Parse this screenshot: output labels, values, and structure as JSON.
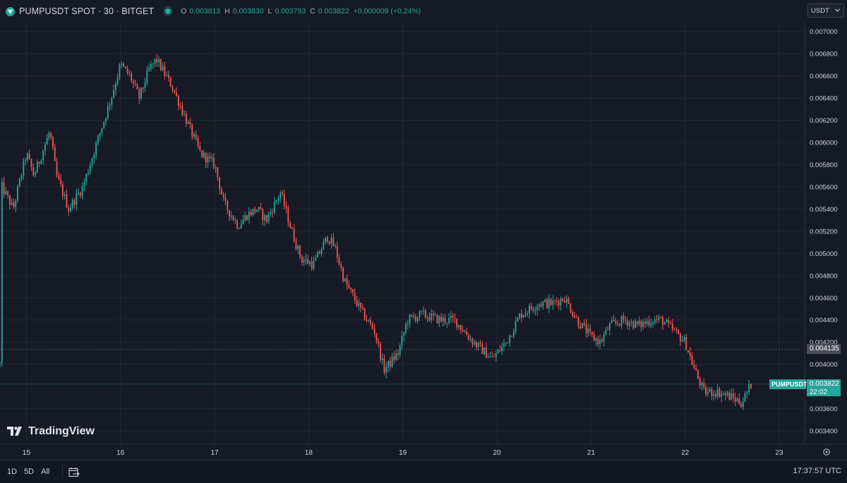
{
  "header": {
    "symbol": "PUMPUSDT SPOT · 30 · BITGET",
    "ohlc": [
      {
        "key": "O",
        "value": "0.003813"
      },
      {
        "key": "H",
        "value": "0.003830"
      },
      {
        "key": "L",
        "value": "0.003793"
      },
      {
        "key": "C",
        "value": "0.003822"
      }
    ],
    "change": "+0.000009 (+0.24%)"
  },
  "currency": {
    "label": "USDT"
  },
  "colors": {
    "up": "#26a69a",
    "down": "#ef5350",
    "background": "#161a25",
    "grid": "#232632"
  },
  "icons": [
    "live-status-icon",
    "chevron-down-icon",
    "settings-icon",
    "calendar-range-icon",
    "tradingview-logo-icon"
  ],
  "watermark": {
    "text": "TradingView"
  },
  "price_axis": {
    "labels": [
      "0.007000",
      "0.006800",
      "0.006600",
      "0.006400",
      "0.006200",
      "0.006000",
      "0.005800",
      "0.005600",
      "0.005400",
      "0.005200",
      "0.005000",
      "0.004800",
      "0.004600",
      "0.004400",
      "0.004200",
      "0.004000",
      "0.003600",
      "0.003400"
    ]
  },
  "time_axis": {
    "labels": [
      {
        "label": "15",
        "day": 15
      },
      {
        "label": "16",
        "day": 16
      },
      {
        "label": "17",
        "day": 17
      },
      {
        "label": "18",
        "day": 18
      },
      {
        "label": "19",
        "day": 19
      },
      {
        "label": "20",
        "day": 20
      },
      {
        "label": "21",
        "day": 21
      },
      {
        "label": "22",
        "day": 22
      },
      {
        "label": "23",
        "day": 23
      }
    ]
  },
  "crosshair": {
    "price_label": "0.004135",
    "price": 0.004135
  },
  "last_price": {
    "symbol": "PUMPUSDT",
    "price_label": "0.003822",
    "countdown": "22:02",
    "price": 0.003822
  },
  "bottom": {
    "ranges": [
      "1D",
      "5D",
      "All"
    ],
    "clock": "17:37:57 UTC"
  },
  "chart_data": {
    "type": "candlestick",
    "interval_minutes": 30,
    "ylim": [
      0.00328,
      0.00708
    ],
    "xlim_day": [
      14.72,
      23.27
    ],
    "start_day": 14.72,
    "anchors": [
      [
        14.72,
        0.004
      ],
      [
        14.74,
        0.0056
      ],
      [
        14.86,
        0.0054
      ],
      [
        15.0,
        0.0059
      ],
      [
        15.08,
        0.0057
      ],
      [
        15.25,
        0.0061
      ],
      [
        15.32,
        0.0057
      ],
      [
        15.45,
        0.0054
      ],
      [
        15.6,
        0.0056
      ],
      [
        15.75,
        0.006
      ],
      [
        15.9,
        0.0064
      ],
      [
        16.0,
        0.0067
      ],
      [
        16.1,
        0.0066
      ],
      [
        16.2,
        0.0064
      ],
      [
        16.3,
        0.00665
      ],
      [
        16.38,
        0.00675
      ],
      [
        16.55,
        0.0065
      ],
      [
        16.7,
        0.0062
      ],
      [
        16.85,
        0.0059
      ],
      [
        17.0,
        0.0058
      ],
      [
        17.1,
        0.00545
      ],
      [
        17.25,
        0.00525
      ],
      [
        17.35,
        0.00535
      ],
      [
        17.45,
        0.0054
      ],
      [
        17.55,
        0.0053
      ],
      [
        17.7,
        0.00555
      ],
      [
        17.82,
        0.0052
      ],
      [
        17.92,
        0.00495
      ],
      [
        18.05,
        0.0049
      ],
      [
        18.2,
        0.00515
      ],
      [
        18.28,
        0.00505
      ],
      [
        18.38,
        0.00475
      ],
      [
        18.48,
        0.0046
      ],
      [
        18.58,
        0.00445
      ],
      [
        18.7,
        0.0043
      ],
      [
        18.8,
        0.00395
      ],
      [
        18.95,
        0.0041
      ],
      [
        19.05,
        0.0044
      ],
      [
        19.2,
        0.00445
      ],
      [
        19.4,
        0.0044
      ],
      [
        19.55,
        0.0044
      ],
      [
        19.75,
        0.0042
      ],
      [
        19.95,
        0.00405
      ],
      [
        20.1,
        0.0042
      ],
      [
        20.25,
        0.00445
      ],
      [
        20.45,
        0.00455
      ],
      [
        20.6,
        0.00455
      ],
      [
        20.72,
        0.0046
      ],
      [
        20.85,
        0.0044
      ],
      [
        21.0,
        0.00425
      ],
      [
        21.1,
        0.0042
      ],
      [
        21.2,
        0.00435
      ],
      [
        21.35,
        0.0044
      ],
      [
        21.5,
        0.00435
      ],
      [
        21.65,
        0.0044
      ],
      [
        21.75,
        0.0044
      ],
      [
        21.88,
        0.0043
      ],
      [
        22.0,
        0.0042
      ],
      [
        22.1,
        0.00395
      ],
      [
        22.2,
        0.00375
      ],
      [
        22.35,
        0.00375
      ],
      [
        22.5,
        0.0037
      ],
      [
        22.6,
        0.00365
      ],
      [
        22.7,
        0.00382
      ]
    ]
  }
}
